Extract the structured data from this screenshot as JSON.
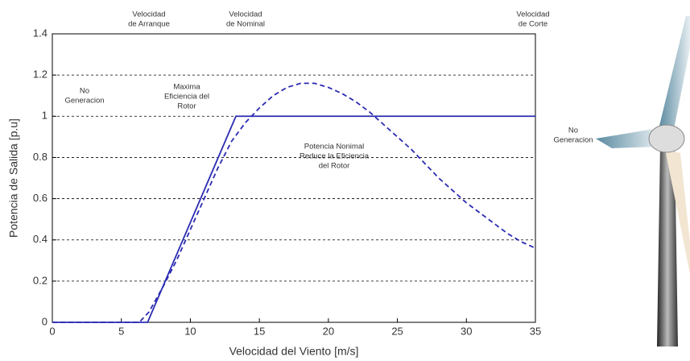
{
  "chart_data": {
    "type": "line",
    "x_label": "Velocidad del Viento [m/s]",
    "y_label": "Potencia de Salida [p.u]",
    "xlim": [
      0,
      35
    ],
    "xticks": [
      0,
      5,
      10,
      15,
      20,
      25,
      30,
      35
    ],
    "ylim": [
      0,
      1.4
    ],
    "yticks": [
      0,
      0.2,
      0.4,
      0.6,
      0.8,
      1,
      1.2,
      1.4
    ],
    "grid": true,
    "series": [
      {
        "color": "#2b2bb3",
        "dash": false,
        "x": [
          0,
          6.9,
          13.3,
          35
        ],
        "values": [
          0,
          0,
          1,
          1
        ]
      },
      {
        "color": "#2b2bb3",
        "dash": true,
        "x": [
          0,
          6.3,
          7,
          8,
          9,
          10,
          11,
          12,
          13,
          14,
          15,
          16,
          17,
          18,
          19,
          20,
          21,
          22,
          23,
          24,
          25,
          26,
          27,
          28,
          29,
          30,
          31,
          32,
          33,
          34,
          35
        ],
        "values": [
          0,
          0,
          0.05,
          0.17,
          0.3,
          0.45,
          0.6,
          0.75,
          0.88,
          0.97,
          1.04,
          1.1,
          1.14,
          1.16,
          1.16,
          1.14,
          1.11,
          1.07,
          1.02,
          0.96,
          0.9,
          0.84,
          0.77,
          0.7,
          0.64,
          0.58,
          0.53,
          0.48,
          0.43,
          0.39,
          0.36
        ]
      }
    ],
    "annotations": [
      {
        "lines": [
          "Velocidad",
          "de Arranque"
        ]
      },
      {
        "lines": [
          "Velocidad",
          "de Nominal"
        ]
      },
      {
        "lines": [
          "Velocidad",
          "de Corte"
        ]
      },
      {
        "lines": [
          "No",
          "Generacion"
        ]
      },
      {
        "lines": [
          "Maxima",
          "Eficiencia del",
          "Rotor"
        ]
      },
      {
        "lines": [
          "Potencia Nonimal",
          "Reduce la Eficiencia",
          "del Rotor"
        ]
      },
      {
        "lines": [
          "No",
          "Generacion"
        ]
      }
    ]
  }
}
